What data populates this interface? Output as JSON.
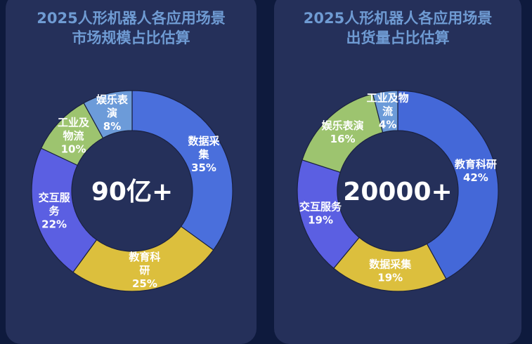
{
  "chart_data": [
    {
      "type": "pie",
      "title_lines": [
        "2025人形机器人各应用场景",
        "市场规模占比估算"
      ],
      "center_text": "90亿+",
      "slices": [
        {
          "name": "数据采集",
          "label_lines": [
            "数据采",
            "集"
          ],
          "value": 35,
          "value_label": "35%",
          "color": "#4a6fdc"
        },
        {
          "name": "教育科研",
          "label_lines": [
            "教育科",
            "研"
          ],
          "value": 25,
          "value_label": "25%",
          "color": "#dcbf3d"
        },
        {
          "name": "交互服务",
          "label_lines": [
            "交互服",
            "务"
          ],
          "value": 22,
          "value_label": "22%",
          "color": "#5b5fe2"
        },
        {
          "name": "工业及物流",
          "label_lines": [
            "工业及",
            "物流"
          ],
          "value": 10,
          "value_label": "10%",
          "color": "#9dc46f"
        },
        {
          "name": "娱乐表演",
          "label_lines": [
            "娱乐表",
            "演"
          ],
          "value": 8,
          "value_label": "8%",
          "color": "#6c9bd9"
        }
      ]
    },
    {
      "type": "pie",
      "title_lines": [
        "2025人形机器人各应用场景",
        "出货量占比估算"
      ],
      "center_text": "20000+",
      "slices": [
        {
          "name": "教育科研",
          "label_lines": [
            "教育科研"
          ],
          "value": 42,
          "value_label": "42%",
          "color": "#4468d8"
        },
        {
          "name": "数据采集",
          "label_lines": [
            "数据采集"
          ],
          "value": 19,
          "value_label": "19%",
          "color": "#dcbf3d"
        },
        {
          "name": "交互服务",
          "label_lines": [
            "交互服务"
          ],
          "value": 19,
          "value_label": "19%",
          "color": "#5b5fe2"
        },
        {
          "name": "娱乐表演",
          "label_lines": [
            "娱乐表演"
          ],
          "value": 16,
          "value_label": "16%",
          "color": "#9dc46f"
        },
        {
          "name": "工业及物流",
          "label_lines": [
            "工业及物",
            "流"
          ],
          "value": 4,
          "value_label": "4%",
          "color": "#6c9bd9"
        }
      ]
    }
  ]
}
